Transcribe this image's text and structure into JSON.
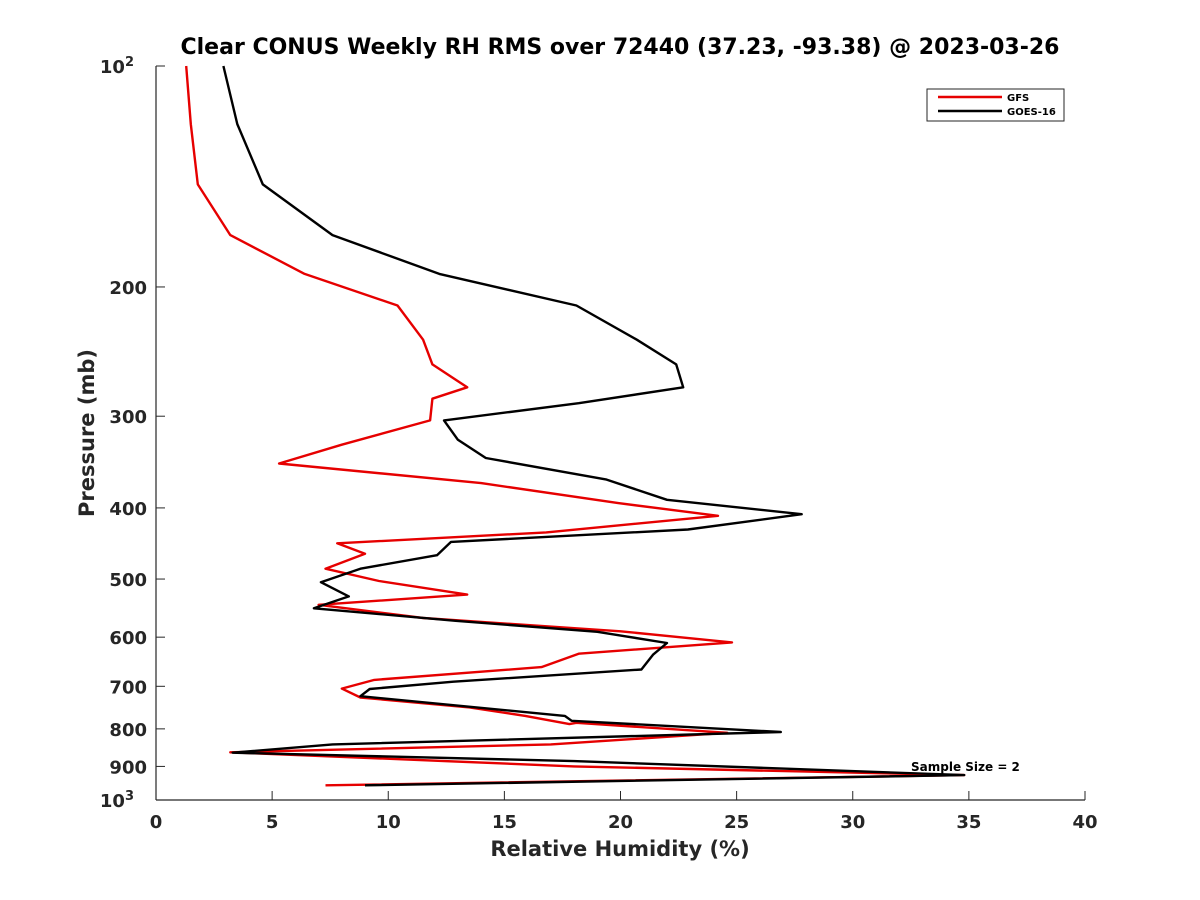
{
  "chart_data": {
    "type": "line",
    "title": "Clear CONUS Weekly RH RMS over 72440 (37.23, -93.38) @ 2023-03-26",
    "xlabel": "Relative Humidity (%)",
    "ylabel": "Pressure (mb)",
    "xlim": [
      0,
      40
    ],
    "ylim": [
      100,
      1000
    ],
    "y_scale": "log",
    "y_reversed": true,
    "grid": false,
    "legend_position": "top-right",
    "x_ticks": [
      0,
      5,
      10,
      15,
      20,
      25,
      30,
      35,
      40
    ],
    "y_ticks": [
      {
        "value": 100,
        "label": "10",
        "sup": "2"
      },
      {
        "value": 200,
        "label": "200"
      },
      {
        "value": 300,
        "label": "300"
      },
      {
        "value": 400,
        "label": "400"
      },
      {
        "value": 500,
        "label": "500"
      },
      {
        "value": 600,
        "label": "600"
      },
      {
        "value": 700,
        "label": "700"
      },
      {
        "value": 800,
        "label": "800"
      },
      {
        "value": 900,
        "label": "900"
      },
      {
        "value": 1000,
        "label": "10",
        "sup": "3"
      }
    ],
    "annotation": "Sample Size = 2",
    "series": [
      {
        "name": "GFS",
        "color": "#e60000",
        "points": [
          [
            1.3,
            100
          ],
          [
            1.5,
            120
          ],
          [
            1.8,
            145
          ],
          [
            3.2,
            170
          ],
          [
            6.4,
            192
          ],
          [
            10.4,
            212
          ],
          [
            11.5,
            236
          ],
          [
            11.9,
            255
          ],
          [
            13.4,
            274
          ],
          [
            11.9,
            284
          ],
          [
            11.8,
            304
          ],
          [
            8.0,
            328
          ],
          [
            5.3,
            348
          ],
          [
            14.0,
            370
          ],
          [
            19.9,
            394
          ],
          [
            24.2,
            410
          ],
          [
            16.8,
            432
          ],
          [
            7.8,
            447
          ],
          [
            9.0,
            462
          ],
          [
            7.3,
            484
          ],
          [
            9.6,
            503
          ],
          [
            13.4,
            525
          ],
          [
            7.0,
            542
          ],
          [
            11.5,
            565
          ],
          [
            20.0,
            589
          ],
          [
            24.8,
            610
          ],
          [
            18.2,
            632
          ],
          [
            16.6,
            659
          ],
          [
            9.4,
            686
          ],
          [
            8.0,
            705
          ],
          [
            8.8,
            725
          ],
          [
            13.5,
            748
          ],
          [
            15.9,
            768
          ],
          [
            17.8,
            788
          ],
          [
            18.1,
            785
          ],
          [
            24.6,
            810
          ],
          [
            17.0,
            840
          ],
          [
            3.2,
            861
          ],
          [
            18.0,
            900
          ],
          [
            34.8,
            925
          ],
          [
            7.3,
            955
          ]
        ]
      },
      {
        "name": "GOES-16",
        "color": "#000000",
        "points": [
          [
            2.9,
            100
          ],
          [
            3.5,
            120
          ],
          [
            4.6,
            145
          ],
          [
            7.6,
            170
          ],
          [
            12.2,
            192
          ],
          [
            18.1,
            212
          ],
          [
            20.7,
            236
          ],
          [
            22.4,
            255
          ],
          [
            22.7,
            274
          ],
          [
            18.2,
            288
          ],
          [
            12.4,
            304
          ],
          [
            13.0,
            323
          ],
          [
            14.2,
            342
          ],
          [
            19.4,
            366
          ],
          [
            22.0,
            390
          ],
          [
            27.8,
            408
          ],
          [
            22.9,
            428
          ],
          [
            12.7,
            445
          ],
          [
            12.1,
            464
          ],
          [
            8.8,
            484
          ],
          [
            7.1,
            505
          ],
          [
            8.3,
            528
          ],
          [
            6.8,
            548
          ],
          [
            12.9,
            570
          ],
          [
            19.0,
            590
          ],
          [
            22.0,
            611
          ],
          [
            21.4,
            634
          ],
          [
            20.9,
            664
          ],
          [
            12.8,
            690
          ],
          [
            9.2,
            706
          ],
          [
            8.8,
            722
          ],
          [
            17.6,
            768
          ],
          [
            17.9,
            780
          ],
          [
            26.9,
            808
          ],
          [
            7.6,
            840
          ],
          [
            3.3,
            862
          ],
          [
            18.0,
            885
          ],
          [
            34.8,
            925
          ],
          [
            9.0,
            955
          ]
        ]
      }
    ]
  }
}
